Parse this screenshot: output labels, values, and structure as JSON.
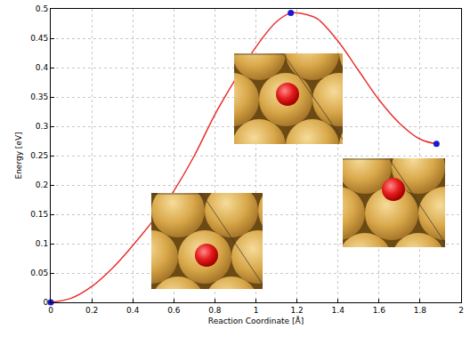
{
  "chart_data": {
    "type": "line",
    "x_label": "Reaction Coordinate [Å]",
    "y_label": "Energy [eV]",
    "xlim": [
      0,
      2
    ],
    "ylim": [
      0,
      0.5
    ],
    "xticks": [
      0,
      0.2,
      0.4,
      0.6,
      0.8,
      1,
      1.2,
      1.4,
      1.6,
      1.8,
      2
    ],
    "yticks": [
      0,
      0.05,
      0.1,
      0.15,
      0.2,
      0.25,
      0.3,
      0.35,
      0.4,
      0.45,
      0.5
    ],
    "grid": true,
    "series": [
      {
        "type": "line",
        "color": "#e8312f",
        "line_style": "solid",
        "x": [
          0,
          0.1,
          0.2,
          0.3,
          0.4,
          0.5,
          0.6,
          0.7,
          0.8,
          0.9,
          1.0,
          1.1,
          1.17,
          1.25,
          1.3,
          1.4,
          1.5,
          1.6,
          1.7,
          1.8,
          1.88
        ],
        "values": [
          0,
          0.007,
          0.027,
          0.058,
          0.097,
          0.14,
          0.19,
          0.25,
          0.32,
          0.38,
          0.435,
          0.478,
          0.493,
          0.49,
          0.483,
          0.445,
          0.395,
          0.345,
          0.305,
          0.278,
          0.27
        ]
      },
      {
        "type": "scatter",
        "color": "#1a1ad0",
        "marker": "circle",
        "x": [
          0,
          1.17,
          1.88
        ],
        "values": [
          0,
          0.493,
          0.27
        ]
      }
    ]
  }
}
